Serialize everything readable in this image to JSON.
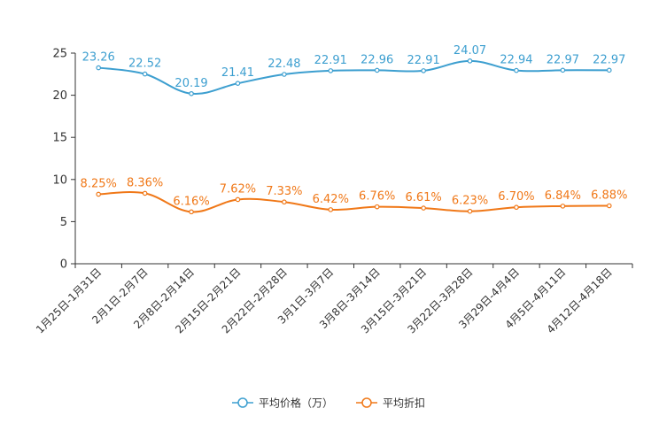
{
  "chart_data": {
    "type": "line",
    "categories": [
      "1月25日-1月31日",
      "2月1日-2月7日",
      "2月8日-2月14日",
      "2月15日-2月21日",
      "2月22日-2月28日",
      "3月1日-3月7日",
      "3月8日-3月14日",
      "3月15日-3月21日",
      "3月22日-3月28日",
      "3月29日-4月4日",
      "4月5日-4月11日",
      "4月12日-4月18日"
    ],
    "ylim": [
      0,
      25
    ],
    "yticks": [
      0,
      5,
      10,
      15,
      20,
      25
    ],
    "series": [
      {
        "name": "平均价格（万）",
        "color": "#3d9fd0",
        "values": [
          23.26,
          22.52,
          20.19,
          21.41,
          22.48,
          22.91,
          22.96,
          22.91,
          24.07,
          22.94,
          22.97,
          22.97
        ],
        "labels": [
          "23.26",
          "22.52",
          "20.19",
          "21.41",
          "22.48",
          "22.91",
          "22.96",
          "22.91",
          "24.07",
          "22.94",
          "22.97",
          "22.97"
        ]
      },
      {
        "name": "平均折扣",
        "color": "#f07818",
        "values": [
          8.25,
          8.36,
          6.16,
          7.62,
          7.33,
          6.42,
          6.76,
          6.61,
          6.23,
          6.7,
          6.84,
          6.88
        ],
        "labels": [
          "8.25%",
          "8.36%",
          "6.16%",
          "7.62%",
          "7.33%",
          "6.42%",
          "6.76%",
          "6.61%",
          "6.23%",
          "6.70%",
          "6.84%",
          "6.88%"
        ]
      }
    ],
    "legend_position": "bottom-center",
    "grid": false
  }
}
